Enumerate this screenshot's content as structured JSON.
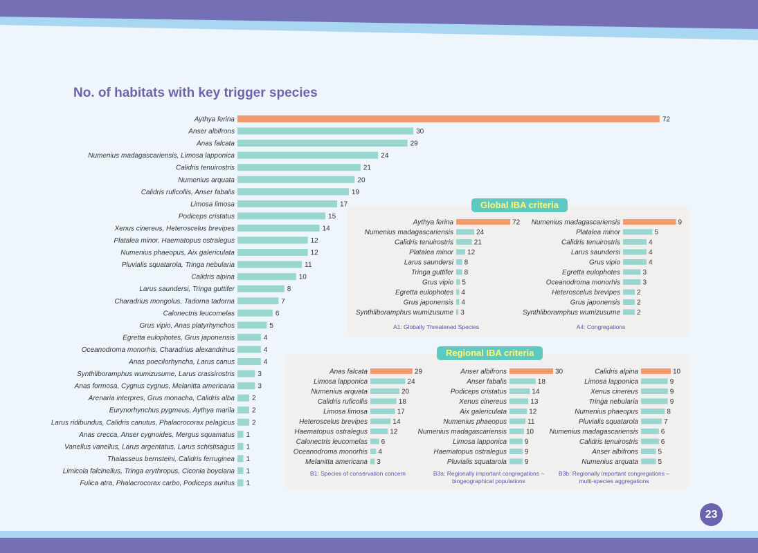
{
  "title": "No. of habitats with key trigger species",
  "page_number": "23",
  "colors": {
    "highlight": "#f59a6e",
    "bar": "#9ad6d0",
    "accent_purple": "#7570b5",
    "badge_bg": "#5ec9c1",
    "badge_text": "#fff67a"
  },
  "global_badge": "Global IBA criteria",
  "regional_badge": "Regional IBA criteria",
  "chart_data": [
    {
      "type": "bar",
      "orientation": "horizontal",
      "title": "No. of habitats with key trigger species",
      "categories": [
        "Aythya ferina",
        "Anser albifrons",
        "Anas falcata",
        "Numenius madagascariensis, Limosa lapponica",
        "Calidris tenuirostris",
        "Numenius arquata",
        "Calidris ruficollis, Anser fabalis",
        "Limosa limosa",
        "Podiceps cristatus",
        "Xenus cinereus, Heteroscelus brevipes",
        "Platalea minor, Haematopus ostralegus",
        "Numenius phaeopus, Aix galericulata",
        "Pluvialis squatarola, Tringa nebularia",
        "Calidris alpina",
        "Larus saundersi, Tringa guttifer",
        "Charadrius mongolus, Tadorna tadorna",
        "Calonectris leucomelas",
        "Grus vipio, Anas platyrhynchos",
        "Egretta eulophotes, Grus japonensis",
        "Oceanodroma monorhis, Charadrius alexandrinus",
        "Anas poecilorhyncha, Larus canus",
        "Synthliboramphus wumizusume, Larus crassirostris",
        "Anas formosa, Cygnus cygnus, Melanitta americana",
        "Arenaria interpres, Grus monacha, Calidris alba",
        "Eurynorhynchus pygmeus, Aythya marila",
        "Larus ridibundus, Calidris canutus, Phalacrocorax pelagicus",
        "Anas crecca, Anser cygnoides, Mergus squamatus",
        "Vanellus vanellus, Larus argentatus, Larus schistisagus",
        "Thalasseus bernsteini, Calidris ferruginea",
        "Limicola falcinellus, Tringa erythropus, Ciconia boyciana",
        "Fulica atra, Phalacrocorax carbo, Podiceps auritus"
      ],
      "values": [
        72,
        30,
        29,
        24,
        21,
        20,
        19,
        17,
        15,
        14,
        12,
        12,
        11,
        10,
        8,
        7,
        6,
        5,
        4,
        4,
        4,
        3,
        3,
        2,
        2,
        2,
        1,
        1,
        1,
        1,
        1
      ],
      "highlight_index": 0
    },
    {
      "type": "bar",
      "orientation": "horizontal",
      "group": "Global IBA criteria",
      "caption": "A1: Globally Threatened Species",
      "categories": [
        "Aythya ferina",
        "Numenius madagascariensis",
        "Calidris tenuirostris",
        "Platalea minor",
        "Larus saundersi",
        "Tringa guttifer",
        "Grus vipio",
        "Egretta eulophotes",
        "Grus japonensis",
        "Synthliboramphus wumizusume"
      ],
      "values": [
        72,
        24,
        21,
        12,
        8,
        8,
        5,
        4,
        4,
        3
      ]
    },
    {
      "type": "bar",
      "orientation": "horizontal",
      "group": "Global IBA criteria",
      "caption": "A4: Congregations",
      "categories": [
        "Numenius madagascariensis",
        "Platalea minor",
        "Calidris tenuirostris",
        "Larus saundersi",
        "Grus vipio",
        "Egretta eulophotes",
        "Oceanodroma monorhis",
        "Heteroscelus brevipes",
        "Grus japonensis",
        "Synthliboramphus wumizusume"
      ],
      "values": [
        9,
        5,
        4,
        4,
        4,
        3,
        3,
        2,
        2,
        2
      ]
    },
    {
      "type": "bar",
      "orientation": "horizontal",
      "group": "Regional IBA criteria",
      "caption": "B1: Species of conservation concern",
      "categories": [
        "Anas falcata",
        "Limosa lapponica",
        "Numenius arquata",
        "Calidris ruficollis",
        "Limosa limosa",
        "Heteroscelus brevipes",
        "Haematopus ostralegus",
        "Calonectris leucomelas",
        "Oceanodroma monorhis",
        "Melanitta americana"
      ],
      "values": [
        29,
        24,
        20,
        18,
        17,
        14,
        12,
        6,
        4,
        3
      ]
    },
    {
      "type": "bar",
      "orientation": "horizontal",
      "group": "Regional IBA criteria",
      "caption": "B3a: Regionally important congregations – biogeographical populations",
      "categories": [
        "Anser albifrons",
        "Anser fabalis",
        "Podiceps cristatus",
        "Xenus cinereus",
        "Aix galericulata",
        "Numenius phaeopus",
        "Numenius madagascariensis",
        "Limosa lapponica",
        "Haematopus ostralegus",
        "Pluvialis squatarola"
      ],
      "values": [
        30,
        18,
        14,
        13,
        12,
        11,
        10,
        9,
        9,
        9
      ]
    },
    {
      "type": "bar",
      "orientation": "horizontal",
      "group": "Regional IBA criteria",
      "caption": "B3b: Regionally important congregations – multi-species aggregations",
      "categories": [
        "Calidris alpina",
        "Limosa lapponica",
        "Xenus cinereus",
        "Tringa nebularia",
        "Numenius phaeopus",
        "Pluvialis squatarola",
        "Numenius madagascariensis",
        "Calidris tenuirostris",
        "Anser albifrons",
        "Numenius arquata"
      ],
      "values": [
        10,
        9,
        9,
        9,
        8,
        7,
        6,
        6,
        5,
        5
      ]
    }
  ]
}
